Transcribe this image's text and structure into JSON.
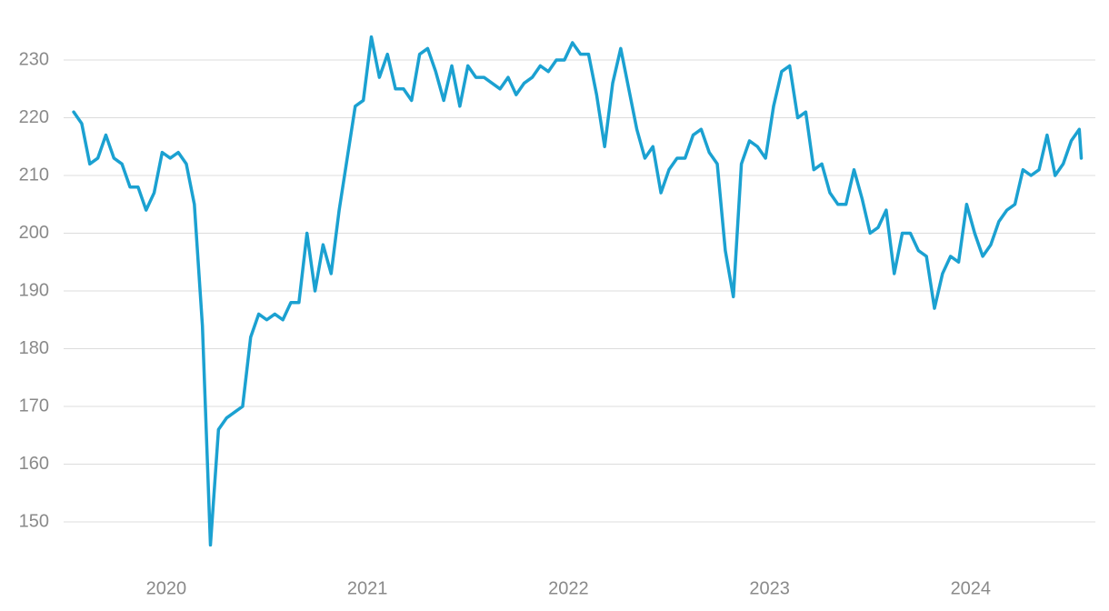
{
  "chart_data": {
    "type": "line",
    "x": [
      2019.54,
      2019.58,
      2019.62,
      2019.66,
      2019.7,
      2019.74,
      2019.78,
      2019.82,
      2019.86,
      2019.9,
      2019.94,
      2019.98,
      2020.02,
      2020.06,
      2020.1,
      2020.14,
      2020.18,
      2020.22,
      2020.26,
      2020.3,
      2020.34,
      2020.38,
      2020.42,
      2020.46,
      2020.5,
      2020.54,
      2020.58,
      2020.62,
      2020.66,
      2020.7,
      2020.74,
      2020.78,
      2020.82,
      2020.86,
      2020.9,
      2020.94,
      2020.98,
      2021.02,
      2021.06,
      2021.1,
      2021.14,
      2021.18,
      2021.22,
      2021.26,
      2021.3,
      2021.34,
      2021.38,
      2021.42,
      2021.46,
      2021.5,
      2021.54,
      2021.58,
      2021.62,
      2021.66,
      2021.7,
      2021.74,
      2021.78,
      2021.82,
      2021.86,
      2021.9,
      2021.94,
      2021.98,
      2022.02,
      2022.06,
      2022.1,
      2022.14,
      2022.18,
      2022.22,
      2022.26,
      2022.3,
      2022.34,
      2022.38,
      2022.42,
      2022.46,
      2022.5,
      2022.54,
      2022.58,
      2022.62,
      2022.66,
      2022.7,
      2022.74,
      2022.78,
      2022.82,
      2022.86,
      2022.9,
      2022.94,
      2022.98,
      2023.02,
      2023.06,
      2023.1,
      2023.14,
      2023.18,
      2023.22,
      2023.26,
      2023.3,
      2023.34,
      2023.38,
      2023.42,
      2023.46,
      2023.5,
      2023.54,
      2023.58,
      2023.62,
      2023.66,
      2023.7,
      2023.74,
      2023.78,
      2023.82,
      2023.86,
      2023.9,
      2023.94,
      2023.98,
      2024.02,
      2024.06,
      2024.1,
      2024.14,
      2024.18,
      2024.22,
      2024.26,
      2024.3,
      2024.34,
      2024.38,
      2024.42,
      2024.46,
      2024.5,
      2024.54,
      2024.55
    ],
    "series": [
      {
        "color": "#1ba1d1",
        "values": [
          221,
          219,
          212,
          213,
          217,
          213,
          212,
          208,
          208,
          204,
          207,
          214,
          213,
          214,
          212,
          205,
          184,
          146,
          166,
          168,
          169,
          170,
          182,
          186,
          185,
          186,
          185,
          188,
          188,
          200,
          190,
          198,
          193,
          204,
          213,
          222,
          223,
          234,
          227,
          231,
          225,
          225,
          223,
          231,
          232,
          228,
          223,
          229,
          222,
          229,
          227,
          227,
          226,
          225,
          227,
          224,
          226,
          227,
          229,
          228,
          230,
          230,
          233,
          231,
          231,
          224,
          215,
          226,
          232,
          225,
          218,
          213,
          215,
          207,
          211,
          213,
          213,
          217,
          218,
          214,
          212,
          197,
          189,
          212,
          216,
          215,
          213,
          222,
          228,
          229,
          220,
          221,
          211,
          212,
          207,
          205,
          205,
          211,
          206,
          200,
          201,
          204,
          193,
          200,
          200,
          197,
          196,
          187,
          193,
          196,
          195,
          205,
          200,
          196,
          198,
          202,
          204,
          205,
          211,
          210,
          211,
          217,
          210,
          212,
          216,
          218,
          213
        ]
      }
    ],
    "xlim": [
      2019.49,
      2024.62
    ],
    "xticks": [
      2020,
      2021,
      2022,
      2023,
      2024
    ],
    "ylim": [
      142.5,
      237.5
    ],
    "yticks": [
      150,
      160,
      170,
      180,
      190,
      200,
      210,
      220,
      230
    ],
    "grid": true
  }
}
